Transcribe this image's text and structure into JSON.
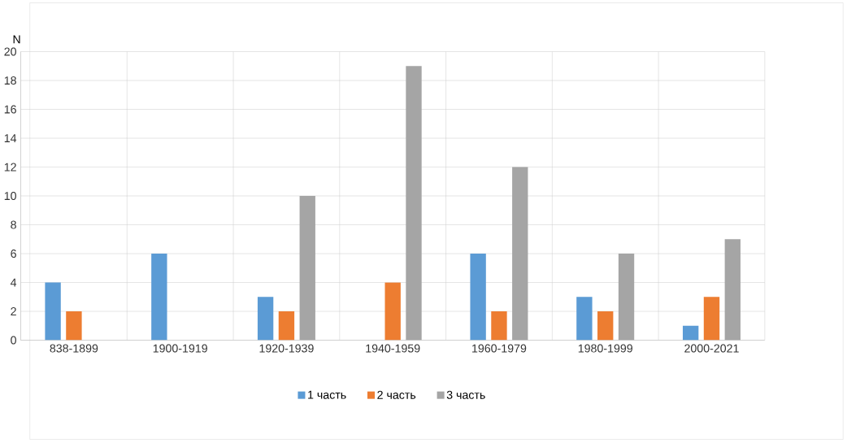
{
  "chart_data": {
    "type": "bar",
    "ylabel": "N",
    "categories": [
      "838-1899",
      "1900-1919",
      "1920-1939",
      "1940-1959",
      "1960-1979",
      "1980-1999",
      "2000-2021"
    ],
    "series": [
      {
        "name": "1 часть",
        "color": "#5b9bd5",
        "values": [
          4,
          6,
          3,
          0,
          6,
          3,
          1
        ]
      },
      {
        "name": "2 часть",
        "color": "#ed7d31",
        "values": [
          2,
          0,
          2,
          4,
          2,
          2,
          3
        ]
      },
      {
        "name": "3 часть",
        "color": "#a5a5a5",
        "values": [
          0,
          0,
          10,
          19,
          12,
          6,
          7
        ]
      }
    ],
    "ylim": [
      0,
      20
    ],
    "yticks": [
      0,
      2,
      4,
      6,
      8,
      10,
      12,
      14,
      16,
      18,
      20
    ],
    "grid": true,
    "legend": "bottom"
  }
}
